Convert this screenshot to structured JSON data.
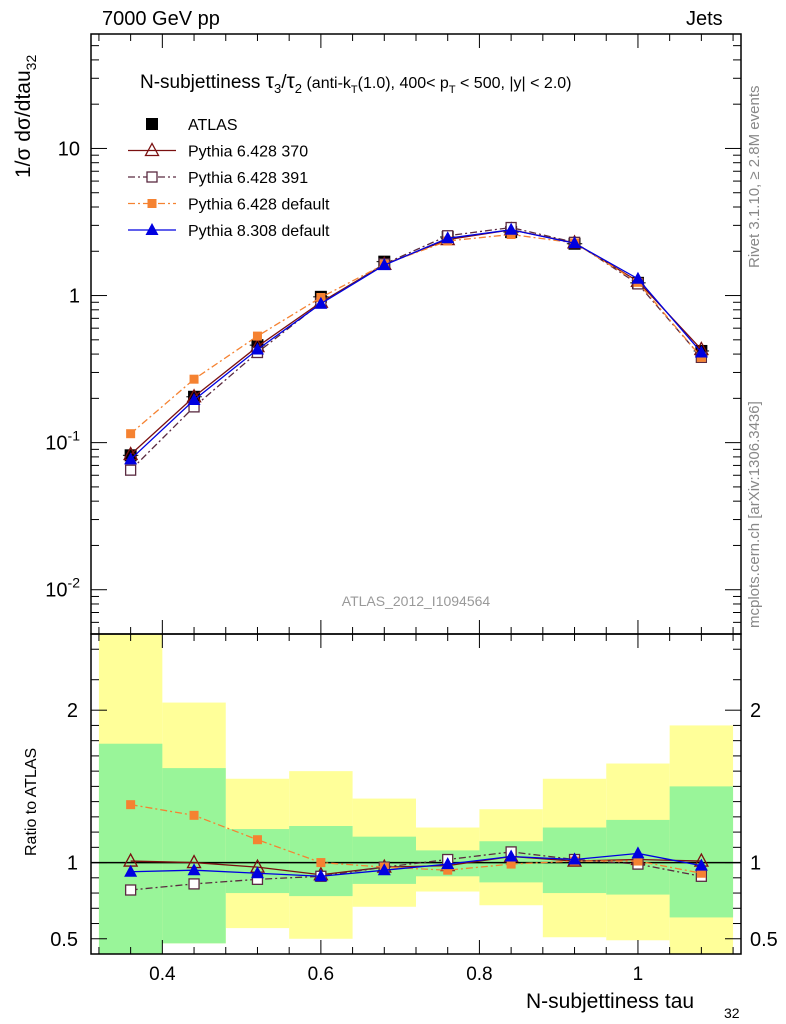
{
  "header": {
    "left": "7000 GeV pp",
    "right": "Jets"
  },
  "side_text": {
    "rivet": "Rivet 3.1.10, ≥ 2.8M events",
    "mcplots": "mcplots.cern.ch [arXiv:1306.3436]"
  },
  "analysis_id": "ATLAS_2012_I1094564",
  "chart_data": {
    "type": "line",
    "title": "N-subjettiness τ3/τ2 (anti-kT(1.0), 400< pT < 500, |y| < 2.0)",
    "title_parts": {
      "main": "N-subjettiness ",
      "tau": "τ",
      "tau_sub1": "3",
      "slash": "/",
      "tau_sub2": "2",
      "paren_a": " (anti-k",
      "kt_sub": "T",
      "paren_b": "(1.0), 400< p",
      "pt_sub": "T",
      "paren_c": " < 500, |y| < 2.0)"
    },
    "xlabel": "N-subjettiness tau",
    "xlabel_sub": "32",
    "ylabel": "1/σ dσ/dtau",
    "ylabel_sub": "32",
    "ratio_ylabel": "Ratio to ATLAS",
    "log_y": true,
    "xlim": [
      0.31,
      1.13
    ],
    "ylim": [
      0.005,
      60
    ],
    "ratio_ylim": [
      0.4,
      2.5
    ],
    "x_ticks": [
      "0.4",
      "0.6",
      "0.8",
      "1"
    ],
    "y_ticks": [
      "10",
      "1",
      "10^-1",
      "10^-2"
    ],
    "ratio_ticks": [
      "2",
      "1",
      "0.5"
    ],
    "x": [
      0.36,
      0.44,
      0.52,
      0.6,
      0.68,
      0.76,
      0.84,
      0.92,
      1.0,
      1.08
    ],
    "bin_edges": [
      0.32,
      0.4,
      0.48,
      0.56,
      0.64,
      0.72,
      0.8,
      0.88,
      0.96,
      1.04,
      1.12
    ],
    "series": [
      {
        "name": "ATLAS",
        "color": "#000000",
        "marker": "filled-square",
        "dash": "none",
        "values": [
          0.082,
          0.205,
          0.46,
          0.98,
          1.7,
          2.5,
          2.7,
          2.25,
          1.22,
          0.42
        ]
      },
      {
        "name": "Pythia 6.428 370",
        "color": "#7a1010",
        "marker": "open-triangle",
        "dash": "solid",
        "values": [
          0.083,
          0.205,
          0.45,
          0.9,
          1.63,
          2.4,
          2.8,
          2.28,
          1.25,
          0.43
        ]
      },
      {
        "name": "Pythia 6.428 391",
        "color": "#5a2a40",
        "marker": "open-square",
        "dash": "dashdot",
        "values": [
          0.065,
          0.175,
          0.41,
          0.89,
          1.64,
          2.55,
          2.9,
          2.3,
          1.2,
          0.38
        ]
      },
      {
        "name": "Pythia 6.428 default",
        "color": "#f58231",
        "marker": "filled-square-small",
        "dash": "dashdot",
        "values": [
          0.115,
          0.27,
          0.53,
          0.97,
          1.63,
          2.35,
          2.6,
          2.28,
          1.23,
          0.38
        ]
      },
      {
        "name": "Pythia 8.308 default",
        "color": "#0000e0",
        "marker": "filled-triangle",
        "dash": "solid",
        "values": [
          0.077,
          0.195,
          0.43,
          0.88,
          1.61,
          2.45,
          2.8,
          2.27,
          1.3,
          0.41
        ]
      }
    ],
    "ratio_series": [
      {
        "name": "Pythia 6.428 370",
        "values": [
          1.01,
          1.0,
          0.97,
          0.92,
          0.97,
          0.98,
          1.04,
          1.01,
          1.02,
          1.01
        ]
      },
      {
        "name": "Pythia 6.428 391",
        "values": [
          0.82,
          0.86,
          0.89,
          0.91,
          0.97,
          1.02,
          1.07,
          1.02,
          0.99,
          0.91
        ]
      },
      {
        "name": "Pythia 6.428 default",
        "values": [
          1.38,
          1.31,
          1.15,
          1.0,
          0.97,
          0.95,
          0.99,
          1.01,
          1.01,
          0.93
        ]
      },
      {
        "name": "Pythia 8.308 default",
        "values": [
          0.94,
          0.95,
          0.93,
          0.91,
          0.95,
          0.99,
          1.04,
          1.02,
          1.06,
          0.98
        ]
      }
    ],
    "bands": {
      "inner_color": "#99f599",
      "outer_color": "#ffff99",
      "inner": [
        [
          0.32,
          1.78
        ],
        [
          0.47,
          1.62
        ],
        [
          0.8,
          1.22
        ],
        [
          0.78,
          1.24
        ],
        [
          0.86,
          1.17
        ],
        [
          0.91,
          1.08
        ],
        [
          0.87,
          1.14
        ],
        [
          0.8,
          1.23
        ],
        [
          0.79,
          1.28
        ],
        [
          0.64,
          1.5
        ]
      ],
      "outer": [
        [
          0.32,
          2.55
        ],
        [
          0.47,
          2.05
        ],
        [
          0.57,
          1.55
        ],
        [
          0.5,
          1.6
        ],
        [
          0.71,
          1.42
        ],
        [
          0.81,
          1.23
        ],
        [
          0.72,
          1.35
        ],
        [
          0.51,
          1.55
        ],
        [
          0.49,
          1.65
        ],
        [
          0.32,
          1.9
        ]
      ]
    }
  }
}
